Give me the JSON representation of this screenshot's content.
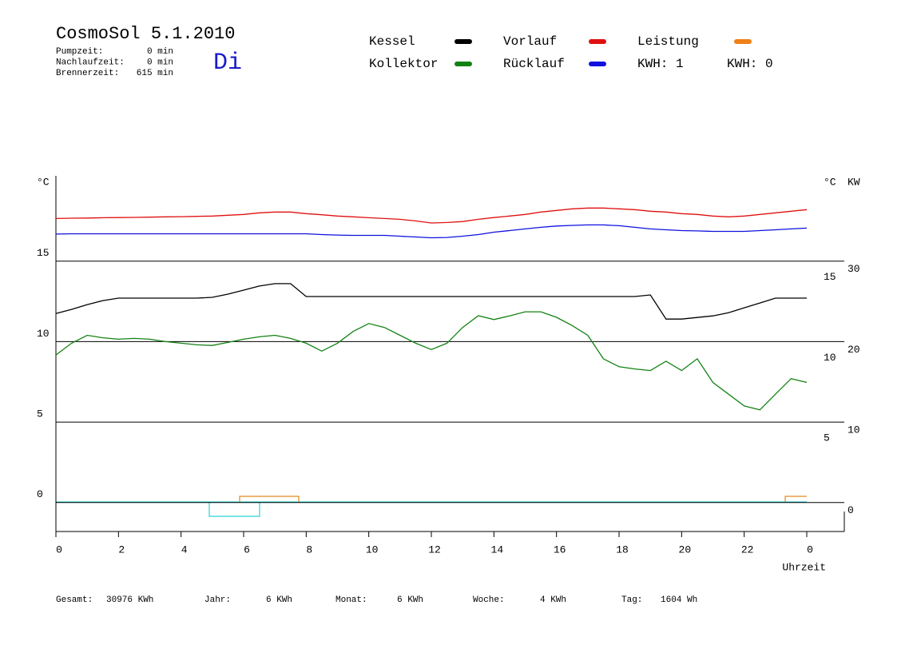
{
  "header": {
    "title": "CosmoSol 5.1.2010",
    "day": "Di",
    "stats": [
      {
        "label": "Pumpzeit:",
        "value": "0 min"
      },
      {
        "label": "Nachlaufzeit:",
        "value": "0 min"
      },
      {
        "label": "Brennerzeit:",
        "value": "615 min"
      }
    ]
  },
  "chart_data": {
    "type": "line",
    "y_unit": "°C",
    "y_unit_right": "°C",
    "y2_unit": "KW",
    "xlabel": "Uhrzeit",
    "x": [
      0,
      0.5,
      1,
      1.5,
      2,
      2.5,
      3,
      3.5,
      4,
      4.5,
      5,
      5.5,
      6,
      6.5,
      7,
      7.5,
      8,
      8.5,
      9,
      9.5,
      10,
      10.5,
      11,
      11.5,
      12,
      12.5,
      13,
      13.5,
      14,
      14.5,
      15,
      15.5,
      16,
      16.5,
      17,
      17.5,
      18,
      18.5,
      19,
      19.5,
      20,
      20.5,
      21,
      21.5,
      22,
      22.5,
      23,
      23.5,
      24
    ],
    "xlim": [
      0,
      25.2
    ],
    "xticks": [
      0,
      2,
      4,
      6,
      8,
      10,
      12,
      14,
      16,
      18,
      20,
      22,
      {
        "value": 24,
        "label": "0"
      }
    ],
    "ylim": [
      -1.8,
      20.3
    ],
    "yticks": [
      0,
      5,
      10,
      15
    ],
    "yticks_right": [
      5,
      10,
      15
    ],
    "y2lim": [
      -3.6,
      40.6
    ],
    "y2ticks": [
      0,
      10,
      20,
      30
    ],
    "y2color": "#e08a1e",
    "series": [
      {
        "name": "Kessel",
        "color": "#000000",
        "values": [
          11.75,
          12.0,
          12.3,
          12.55,
          12.7,
          12.7,
          12.7,
          12.7,
          12.7,
          12.7,
          12.75,
          12.95,
          13.2,
          13.45,
          13.6,
          13.6,
          12.8,
          12.8,
          12.8,
          12.8,
          12.8,
          12.8,
          12.8,
          12.8,
          12.8,
          12.8,
          12.8,
          12.8,
          12.8,
          12.8,
          12.8,
          12.8,
          12.8,
          12.8,
          12.8,
          12.8,
          12.8,
          12.8,
          12.9,
          11.4,
          11.4,
          11.5,
          11.6,
          11.8,
          12.1,
          12.4,
          12.7,
          12.7,
          12.7
        ]
      },
      {
        "name": "Kollektor",
        "color": "#138213",
        "values": [
          9.17,
          9.9,
          10.39,
          10.24,
          10.15,
          10.2,
          10.15,
          10.0,
          9.9,
          9.8,
          9.76,
          9.95,
          10.15,
          10.3,
          10.39,
          10.2,
          9.9,
          9.41,
          9.9,
          10.63,
          11.12,
          10.88,
          10.39,
          9.9,
          9.51,
          9.9,
          10.88,
          11.61,
          11.37,
          11.6,
          11.85,
          11.85,
          11.51,
          11.0,
          10.39,
          8.93,
          8.44,
          8.3,
          8.2,
          8.78,
          8.2,
          8.93,
          7.46,
          6.73,
          6.0,
          5.76,
          6.73,
          7.7,
          7.46
        ]
      },
      {
        "name": "Vorlauf",
        "color": "#e01010",
        "values": [
          17.65,
          17.67,
          17.68,
          17.7,
          17.71,
          17.72,
          17.73,
          17.75,
          17.76,
          17.78,
          17.8,
          17.85,
          17.9,
          18.0,
          18.05,
          18.05,
          17.95,
          17.88,
          17.8,
          17.75,
          17.7,
          17.65,
          17.6,
          17.5,
          17.37,
          17.4,
          17.46,
          17.6,
          17.71,
          17.8,
          17.9,
          18.05,
          18.15,
          18.25,
          18.3,
          18.3,
          18.25,
          18.2,
          18.1,
          18.05,
          17.95,
          17.9,
          17.8,
          17.75,
          17.8,
          17.9,
          18.0,
          18.1,
          18.2
        ]
      },
      {
        "name": "Rücklauf",
        "color": "#1010e0",
        "values": [
          16.68,
          16.7,
          16.7,
          16.7,
          16.7,
          16.7,
          16.7,
          16.7,
          16.7,
          16.7,
          16.7,
          16.7,
          16.7,
          16.7,
          16.7,
          16.7,
          16.7,
          16.65,
          16.62,
          16.6,
          16.6,
          16.6,
          16.55,
          16.5,
          16.45,
          16.47,
          16.55,
          16.65,
          16.8,
          16.9,
          17.0,
          17.1,
          17.18,
          17.22,
          17.25,
          17.25,
          17.2,
          17.1,
          17.0,
          16.95,
          16.9,
          16.88,
          16.85,
          16.85,
          16.85,
          16.9,
          16.95,
          17.0,
          17.05
        ]
      },
      {
        "name": "Leistung",
        "color": "#f08018"
      }
    ],
    "kwh_labels": [
      {
        "text": "KWH: 1",
        "color": "#e08a1e"
      },
      {
        "text": "KWH: 0",
        "color": "#8a2a8a"
      }
    ]
  },
  "footer": [
    {
      "label": "Gesamt:",
      "value": "30976 KWh"
    },
    {
      "label": "Jahr:",
      "value": "6 KWh"
    },
    {
      "label": "Monat:",
      "value": "6 KWh"
    },
    {
      "label": "Woche:",
      "value": "4 KWh"
    },
    {
      "label": "Tag:",
      "value": "1604 Wh"
    }
  ]
}
